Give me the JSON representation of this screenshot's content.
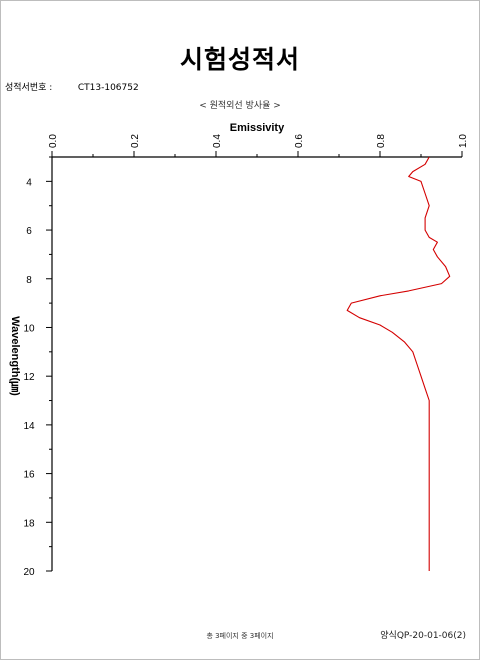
{
  "document": {
    "title": "시험성적서",
    "cert_label": "성적서번호 :",
    "cert_number": "CT13-106752",
    "subtitle": "< 원적외선 방사율 >",
    "footer_pages": "총 3페이지 중 3페이지",
    "footer_form": "양식QP-20-01-06(2)"
  },
  "chart_data": {
    "type": "line",
    "xlabel": "Emissivity",
    "ylabel": "Wavelength(㎛)",
    "xlim": [
      0.0,
      1.0
    ],
    "ylim": [
      3,
      20
    ],
    "x_ticks": [
      "0.0",
      "0.2",
      "0.4",
      "0.6",
      "0.8",
      "1.0"
    ],
    "y_ticks": [
      "4",
      "6",
      "8",
      "10",
      "12",
      "14",
      "16",
      "18",
      "20"
    ],
    "series": [
      {
        "color": "#d40000",
        "points": [
          [
            0.92,
            3.0
          ],
          [
            0.91,
            3.3
          ],
          [
            0.88,
            3.6
          ],
          [
            0.87,
            3.8
          ],
          [
            0.9,
            4.0
          ],
          [
            0.91,
            4.5
          ],
          [
            0.92,
            5.0
          ],
          [
            0.91,
            5.5
          ],
          [
            0.91,
            6.0
          ],
          [
            0.92,
            6.3
          ],
          [
            0.94,
            6.5
          ],
          [
            0.93,
            6.8
          ],
          [
            0.94,
            7.1
          ],
          [
            0.96,
            7.5
          ],
          [
            0.97,
            7.9
          ],
          [
            0.95,
            8.2
          ],
          [
            0.87,
            8.5
          ],
          [
            0.8,
            8.7
          ],
          [
            0.73,
            9.0
          ],
          [
            0.72,
            9.3
          ],
          [
            0.75,
            9.6
          ],
          [
            0.8,
            9.9
          ],
          [
            0.83,
            10.2
          ],
          [
            0.86,
            10.6
          ],
          [
            0.88,
            11.0
          ],
          [
            0.89,
            11.5
          ],
          [
            0.9,
            12.0
          ],
          [
            0.91,
            12.5
          ],
          [
            0.92,
            13.0
          ],
          [
            0.92,
            14.0
          ],
          [
            0.92,
            16.0
          ],
          [
            0.92,
            18.0
          ],
          [
            0.92,
            20.0
          ]
        ]
      }
    ]
  }
}
